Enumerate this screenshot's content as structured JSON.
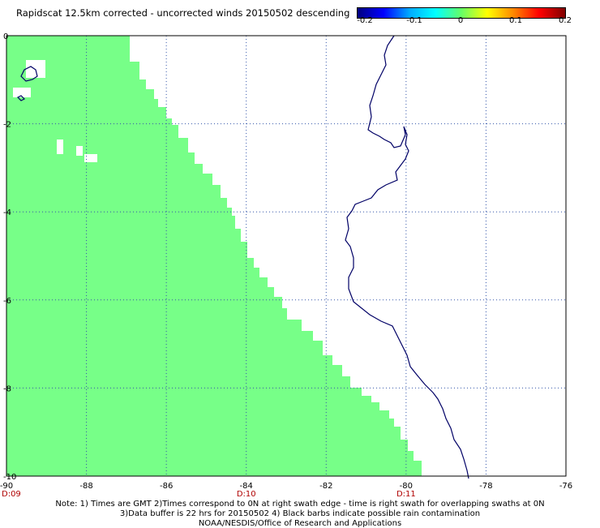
{
  "header": {
    "title": "Rapidscat 12.5km corrected - uncorrected winds 20150502 descending"
  },
  "colorbar": {
    "labels": [
      "-0.2",
      "-0.1",
      "0",
      "0.1",
      "0.2"
    ],
    "colors": [
      "#000080",
      "#0000ff",
      "#00aaff",
      "#00ffff",
      "#66ff66",
      "#ffff00",
      "#ff8800",
      "#ff0000",
      "#800000"
    ]
  },
  "map": {
    "lon_range": [
      -90,
      -76
    ],
    "lat_range": [
      -10,
      0
    ],
    "x_ticks": [
      "-90",
      "-88",
      "-86",
      "-84",
      "-82",
      "-80",
      "-78",
      "-76"
    ],
    "y_ticks": [
      "0",
      "-2",
      "-4",
      "-6",
      "-8",
      "-10"
    ],
    "time_labels": [
      {
        "text": "D:09",
        "lon": -90
      },
      {
        "text": "D:10",
        "lon": -84
      },
      {
        "text": "D:11",
        "lon": -80
      }
    ],
    "swath_color": "#77ff88",
    "coast_color": "#000066"
  },
  "notes": {
    "line1": "Note: 1) Times are GMT 2)Times correspond to 0N at right swath edge - time is right swath for overlapping swaths at 0N",
    "line2": "3)Data buffer is 22 hrs for 20150502 4) Black barbs indicate possible rain contamination",
    "line3": "NOAA/NESDIS/Office of Research and Applications"
  }
}
